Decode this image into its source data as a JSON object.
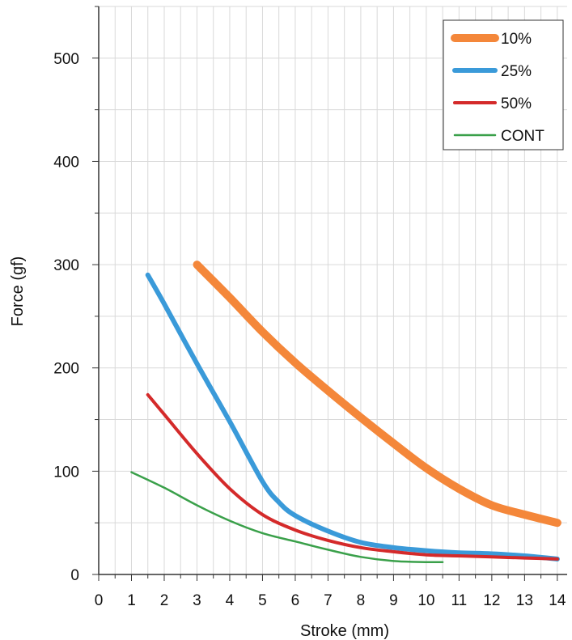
{
  "chart_data": {
    "type": "line",
    "xlabel": "Stroke (mm)",
    "ylabel": "Force (gf)",
    "xlim": [
      0,
      14.3
    ],
    "ylim": [
      0,
      550
    ],
    "xticks": [
      0,
      1,
      2,
      3,
      4,
      5,
      6,
      7,
      8,
      9,
      10,
      11,
      12,
      13,
      14
    ],
    "yticks": [
      0,
      100,
      200,
      300,
      400,
      500
    ],
    "grid": true,
    "legend_position": "top-right",
    "series": [
      {
        "name": "10%",
        "color": "#f4873a",
        "x": [
          3,
          4,
          5,
          6,
          7,
          8,
          9,
          10,
          11,
          12,
          13,
          14
        ],
        "y": [
          300,
          268,
          235,
          205,
          178,
          152,
          127,
          103,
          83,
          67,
          58,
          50
        ]
      },
      {
        "name": "25%",
        "color": "#3a9ad9",
        "x": [
          1.5,
          2,
          3,
          4,
          5,
          5.5,
          6,
          7,
          8,
          9,
          10,
          11,
          12,
          13,
          14
        ],
        "y": [
          290,
          262,
          204,
          148,
          90,
          70,
          57,
          42,
          31,
          26,
          23,
          21,
          20,
          18,
          15
        ]
      },
      {
        "name": "50%",
        "color": "#d42a2a",
        "x": [
          1.5,
          2,
          3,
          4,
          5,
          6,
          7,
          8,
          9,
          10,
          11,
          12,
          13,
          14
        ],
        "y": [
          174,
          155,
          117,
          83,
          58,
          43,
          33,
          26,
          22,
          19,
          18,
          17,
          16,
          15
        ]
      },
      {
        "name": "CONT",
        "color": "#3aa04a",
        "x": [
          1,
          2,
          3,
          4,
          5,
          6,
          7,
          8,
          9,
          10,
          10.5
        ],
        "y": [
          99,
          84,
          67,
          52,
          40,
          32,
          24,
          17,
          13,
          12,
          12
        ]
      }
    ]
  }
}
